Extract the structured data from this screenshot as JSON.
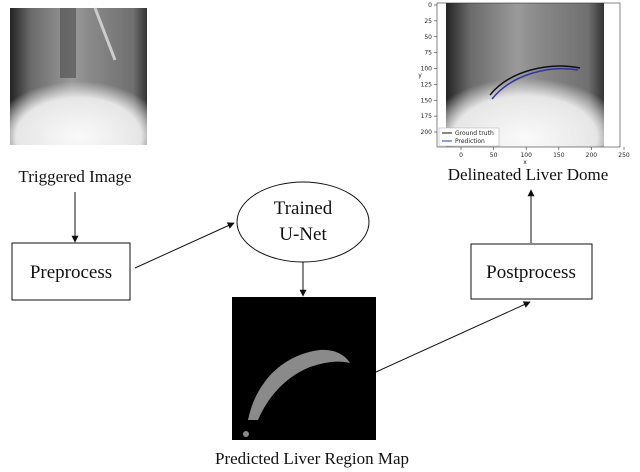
{
  "input": {
    "label": "Triggered Image"
  },
  "steps": {
    "preprocess": "Preprocess",
    "model": [
      "Trained",
      "U-Net"
    ],
    "postprocess": "Postprocess"
  },
  "prediction": {
    "label": "Predicted Liver Region Map"
  },
  "output": {
    "label": "Delineated Liver Dome",
    "plot": {
      "xlabel": "x",
      "ylabel": "y",
      "xticks": [
        0,
        50,
        100,
        150,
        200,
        250
      ],
      "yticks": [
        0,
        25,
        50,
        75,
        100,
        125,
        150,
        175,
        200
      ],
      "legend": [
        "Ground truth",
        "Prediction"
      ]
    }
  }
}
